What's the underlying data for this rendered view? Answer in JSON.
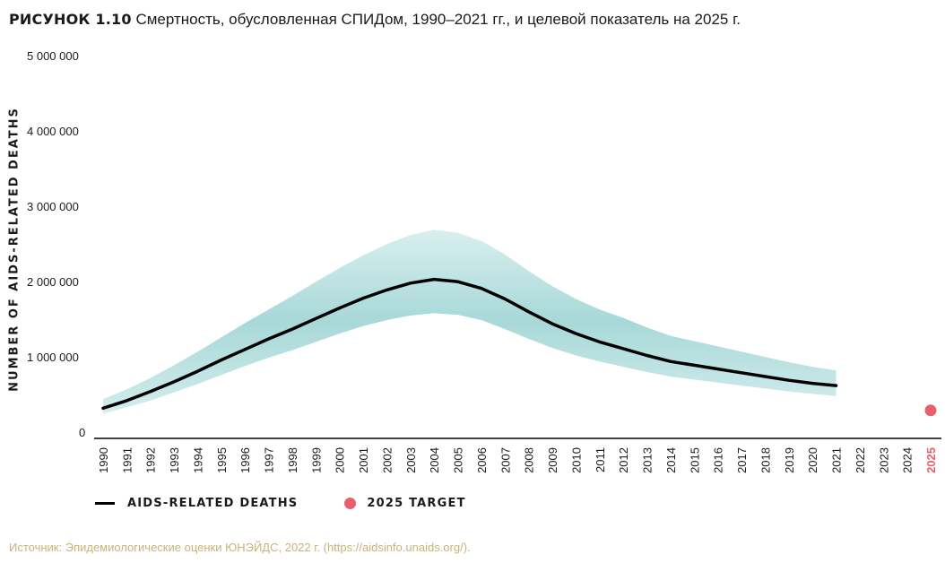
{
  "figure": {
    "label": "РИСУНОК 1.10",
    "title": " Смертность, обусловленная СПИДом, 1990–2021 гг., и целевой показатель на 2025 г."
  },
  "source": "Источник: Эпидемиологические оценки ЮНЭЙДС, 2022 г. (https://aidsinfo.unaids.org/).",
  "legend": {
    "deaths": "AIDS-RELATED DEATHS",
    "target": "2025 TARGET"
  },
  "colors": {
    "line": "#000000",
    "band": "#a8d8d8",
    "target": "#e8606e",
    "source": "#c9b27a"
  },
  "chart_data": {
    "type": "line",
    "title": "Смертность, обусловленная СПИДом, 1990–2021 гг., и целевой показатель на 2025 г.",
    "ylabel": "NUMBER OF AIDS-RELATED DEATHS",
    "xlabel": "",
    "ylim": [
      0,
      5000000
    ],
    "yticks": [
      0,
      1000000,
      2000000,
      3000000,
      4000000,
      5000000
    ],
    "ytick_labels": [
      "0",
      "1 000 000",
      "2 000 000",
      "3 000 000",
      "4 000 000",
      "5 000 000"
    ],
    "x": [
      1990,
      1991,
      1992,
      1993,
      1994,
      1995,
      1996,
      1997,
      1998,
      1999,
      2000,
      2001,
      2002,
      2003,
      2004,
      2005,
      2006,
      2007,
      2008,
      2009,
      2010,
      2011,
      2012,
      2013,
      2014,
      2015,
      2016,
      2017,
      2018,
      2019,
      2020,
      2021
    ],
    "xtick_labels": [
      "1990",
      "1991",
      "1992",
      "1993",
      "1994",
      "1995",
      "1996",
      "1997",
      "1998",
      "1999",
      "2000",
      "2001",
      "2002",
      "2003",
      "2004",
      "2005",
      "2006",
      "2007",
      "2008",
      "2009",
      "2010",
      "2011",
      "2012",
      "2013",
      "2014",
      "2015",
      "2016",
      "2017",
      "2018",
      "2019",
      "2020",
      "2021",
      "2022",
      "2023",
      "2024",
      "2025"
    ],
    "highlight_tick": "2025",
    "series": [
      {
        "name": "AIDS-RELATED DEATHS",
        "values": [
          330000,
          430000,
          550000,
          680000,
          820000,
          970000,
          1110000,
          1250000,
          1380000,
          1520000,
          1660000,
          1790000,
          1900000,
          1990000,
          2040000,
          2010000,
          1920000,
          1780000,
          1610000,
          1450000,
          1320000,
          1210000,
          1120000,
          1030000,
          950000,
          900000,
          850000,
          800000,
          750000,
          700000,
          660000,
          630000
        ]
      },
      {
        "name": "lower bound",
        "values": [
          260000,
          340000,
          430000,
          540000,
          650000,
          770000,
          890000,
          1000000,
          1100000,
          1210000,
          1320000,
          1420000,
          1500000,
          1560000,
          1590000,
          1570000,
          1500000,
          1380000,
          1250000,
          1130000,
          1030000,
          950000,
          880000,
          810000,
          750000,
          710000,
          670000,
          630000,
          590000,
          550000,
          520000,
          490000
        ]
      },
      {
        "name": "upper bound",
        "values": [
          450000,
          580000,
          730000,
          900000,
          1080000,
          1270000,
          1460000,
          1640000,
          1820000,
          2010000,
          2190000,
          2360000,
          2510000,
          2630000,
          2700000,
          2660000,
          2550000,
          2370000,
          2150000,
          1950000,
          1780000,
          1640000,
          1530000,
          1400000,
          1290000,
          1220000,
          1150000,
          1080000,
          1010000,
          940000,
          880000,
          830000
        ]
      }
    ],
    "target": {
      "name": "2025 TARGET",
      "x": 2025,
      "value": 300000
    }
  }
}
